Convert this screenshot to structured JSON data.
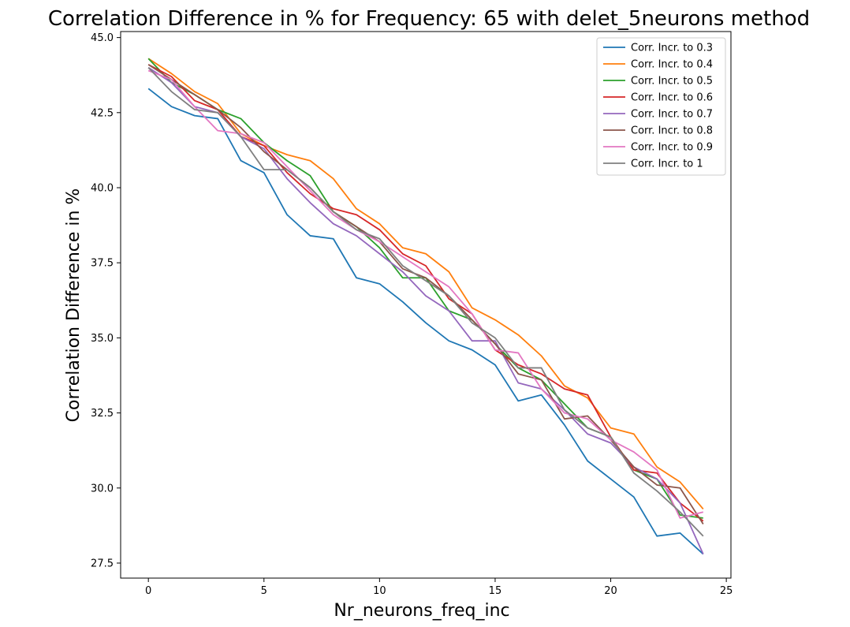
{
  "chart_data": {
    "type": "line",
    "title": "Correlation Difference in % for Frequency:  65 with delet_5neurons method",
    "xlabel": "Nr_neurons_freq_inc",
    "ylabel": "Correlation Difference in %",
    "xlim": [
      -1.2,
      25.2
    ],
    "ylim": [
      27.0,
      45.2
    ],
    "xticks": [
      0,
      5,
      10,
      15,
      20,
      25
    ],
    "xtick_labels": [
      "0",
      "5",
      "10",
      "15",
      "20",
      "25"
    ],
    "yticks": [
      27.5,
      30.0,
      32.5,
      35.0,
      37.5,
      40.0,
      42.5,
      45.0
    ],
    "ytick_labels": [
      "27.5",
      "30.0",
      "32.5",
      "35.0",
      "37.5",
      "40.0",
      "42.5",
      "45.0"
    ],
    "grid": false,
    "legend_position": "top-right",
    "x": [
      0,
      1,
      2,
      3,
      4,
      5,
      6,
      7,
      8,
      9,
      10,
      11,
      12,
      13,
      14,
      15,
      16,
      17,
      18,
      19,
      20,
      21,
      22,
      23,
      24
    ],
    "series": [
      {
        "name": "Corr. Incr. to 0.3",
        "color": "#1f77b4",
        "values": [
          43.3,
          42.7,
          42.4,
          42.3,
          40.9,
          40.5,
          39.1,
          38.4,
          38.3,
          37.0,
          36.8,
          36.2,
          35.5,
          34.9,
          34.6,
          34.1,
          32.9,
          33.1,
          32.1,
          30.9,
          30.3,
          29.7,
          28.4,
          28.5,
          27.8
        ]
      },
      {
        "name": "Corr. Incr. to 0.4",
        "color": "#ff7f0e",
        "values": [
          44.3,
          43.8,
          43.2,
          42.8,
          41.8,
          41.4,
          41.1,
          40.9,
          40.3,
          39.3,
          38.8,
          38.0,
          37.8,
          37.2,
          36.0,
          35.6,
          35.1,
          34.4,
          33.4,
          33.0,
          32.0,
          31.8,
          30.7,
          30.2,
          29.3
        ]
      },
      {
        "name": "Corr. Incr. to 0.5",
        "color": "#2ca02c",
        "values": [
          44.3,
          43.5,
          43.1,
          42.6,
          42.3,
          41.5,
          40.9,
          40.4,
          39.2,
          38.7,
          38.0,
          37.0,
          37.0,
          35.9,
          35.6,
          34.8,
          34.0,
          33.6,
          32.8,
          32.0,
          31.7,
          30.6,
          30.3,
          29.1,
          29.0
        ]
      },
      {
        "name": "Corr. Incr. to 0.6",
        "color": "#d62728",
        "values": [
          44.1,
          43.7,
          42.9,
          42.6,
          41.7,
          41.4,
          40.5,
          39.8,
          39.3,
          39.1,
          38.6,
          37.8,
          37.4,
          36.3,
          35.8,
          34.6,
          34.1,
          33.8,
          33.3,
          33.1,
          31.7,
          30.6,
          30.5,
          29.5,
          28.9
        ]
      },
      {
        "name": "Corr. Incr. to 0.7",
        "color": "#9467bd",
        "values": [
          44.0,
          43.5,
          42.7,
          42.5,
          41.7,
          41.3,
          40.3,
          39.5,
          38.8,
          38.4,
          37.8,
          37.2,
          36.4,
          35.9,
          34.9,
          34.9,
          33.5,
          33.3,
          32.6,
          31.8,
          31.5,
          30.7,
          30.3,
          29.5,
          27.8
        ]
      },
      {
        "name": "Corr. Incr. to 0.8",
        "color": "#8c564b",
        "values": [
          44.1,
          43.6,
          43.1,
          42.6,
          42.0,
          41.2,
          40.6,
          40.0,
          39.2,
          38.7,
          38.2,
          37.3,
          37.0,
          36.4,
          35.6,
          34.8,
          33.8,
          33.6,
          32.3,
          32.4,
          31.6,
          30.7,
          30.1,
          30.0,
          28.8
        ]
      },
      {
        "name": "Corr. Incr. to 0.9",
        "color": "#e377c2",
        "values": [
          43.9,
          43.6,
          42.7,
          41.9,
          41.8,
          41.5,
          40.7,
          39.9,
          39.1,
          38.6,
          38.2,
          37.7,
          37.2,
          36.7,
          35.8,
          34.6,
          34.5,
          33.3,
          32.5,
          32.3,
          31.6,
          31.2,
          30.6,
          29.0,
          29.2
        ]
      },
      {
        "name": "Corr. Incr. to 1",
        "color": "#7f7f7f",
        "values": [
          44.0,
          43.2,
          42.6,
          42.5,
          41.7,
          40.6,
          40.6,
          40.0,
          39.2,
          38.6,
          38.3,
          37.4,
          36.9,
          36.4,
          35.5,
          35.0,
          34.0,
          34.0,
          32.6,
          32.0,
          31.7,
          30.5,
          29.9,
          29.2,
          28.4
        ]
      }
    ]
  }
}
